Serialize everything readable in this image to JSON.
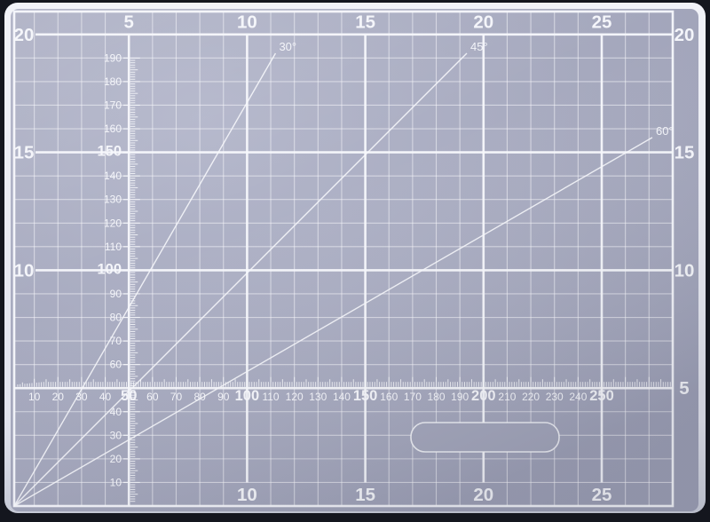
{
  "mat": {
    "top_labels": [
      "5",
      "10",
      "15",
      "20",
      "25"
    ],
    "bottom_labels": [
      "10",
      "15",
      "20",
      "25"
    ],
    "left_labels": [
      "20",
      "15",
      "10"
    ],
    "right_labels": [
      "20",
      "15",
      "10",
      "5"
    ],
    "angle_labels": [
      "30°",
      "45°",
      "60°"
    ],
    "h_ruler_numbers": [
      "10",
      "20",
      "30",
      "40",
      "50",
      "60",
      "70",
      "80",
      "90",
      "100",
      "110",
      "120",
      "130",
      "140",
      "150",
      "160",
      "170",
      "180",
      "190",
      "200",
      "210",
      "220",
      "230",
      "240",
      "250"
    ],
    "h_ruler_bold": [
      "50",
      "100",
      "150",
      "200",
      "250"
    ],
    "v_ruler_numbers": [
      "190",
      "180",
      "170",
      "160",
      "150",
      "140",
      "130",
      "120",
      "110",
      "100",
      "90",
      "80",
      "70",
      "60",
      "40",
      "30",
      "20",
      "10"
    ],
    "v_ruler_bold": [
      "150",
      "100"
    ],
    "colors": {
      "border": "#14161e",
      "rim_light": "#f1f2f8",
      "rim_dark": "#c9cdda",
      "mat_light": "#b4b7cb",
      "mat_base": "#a7aabf",
      "mat_dark": "#9da0b6",
      "line": "#f7f8fc"
    }
  }
}
